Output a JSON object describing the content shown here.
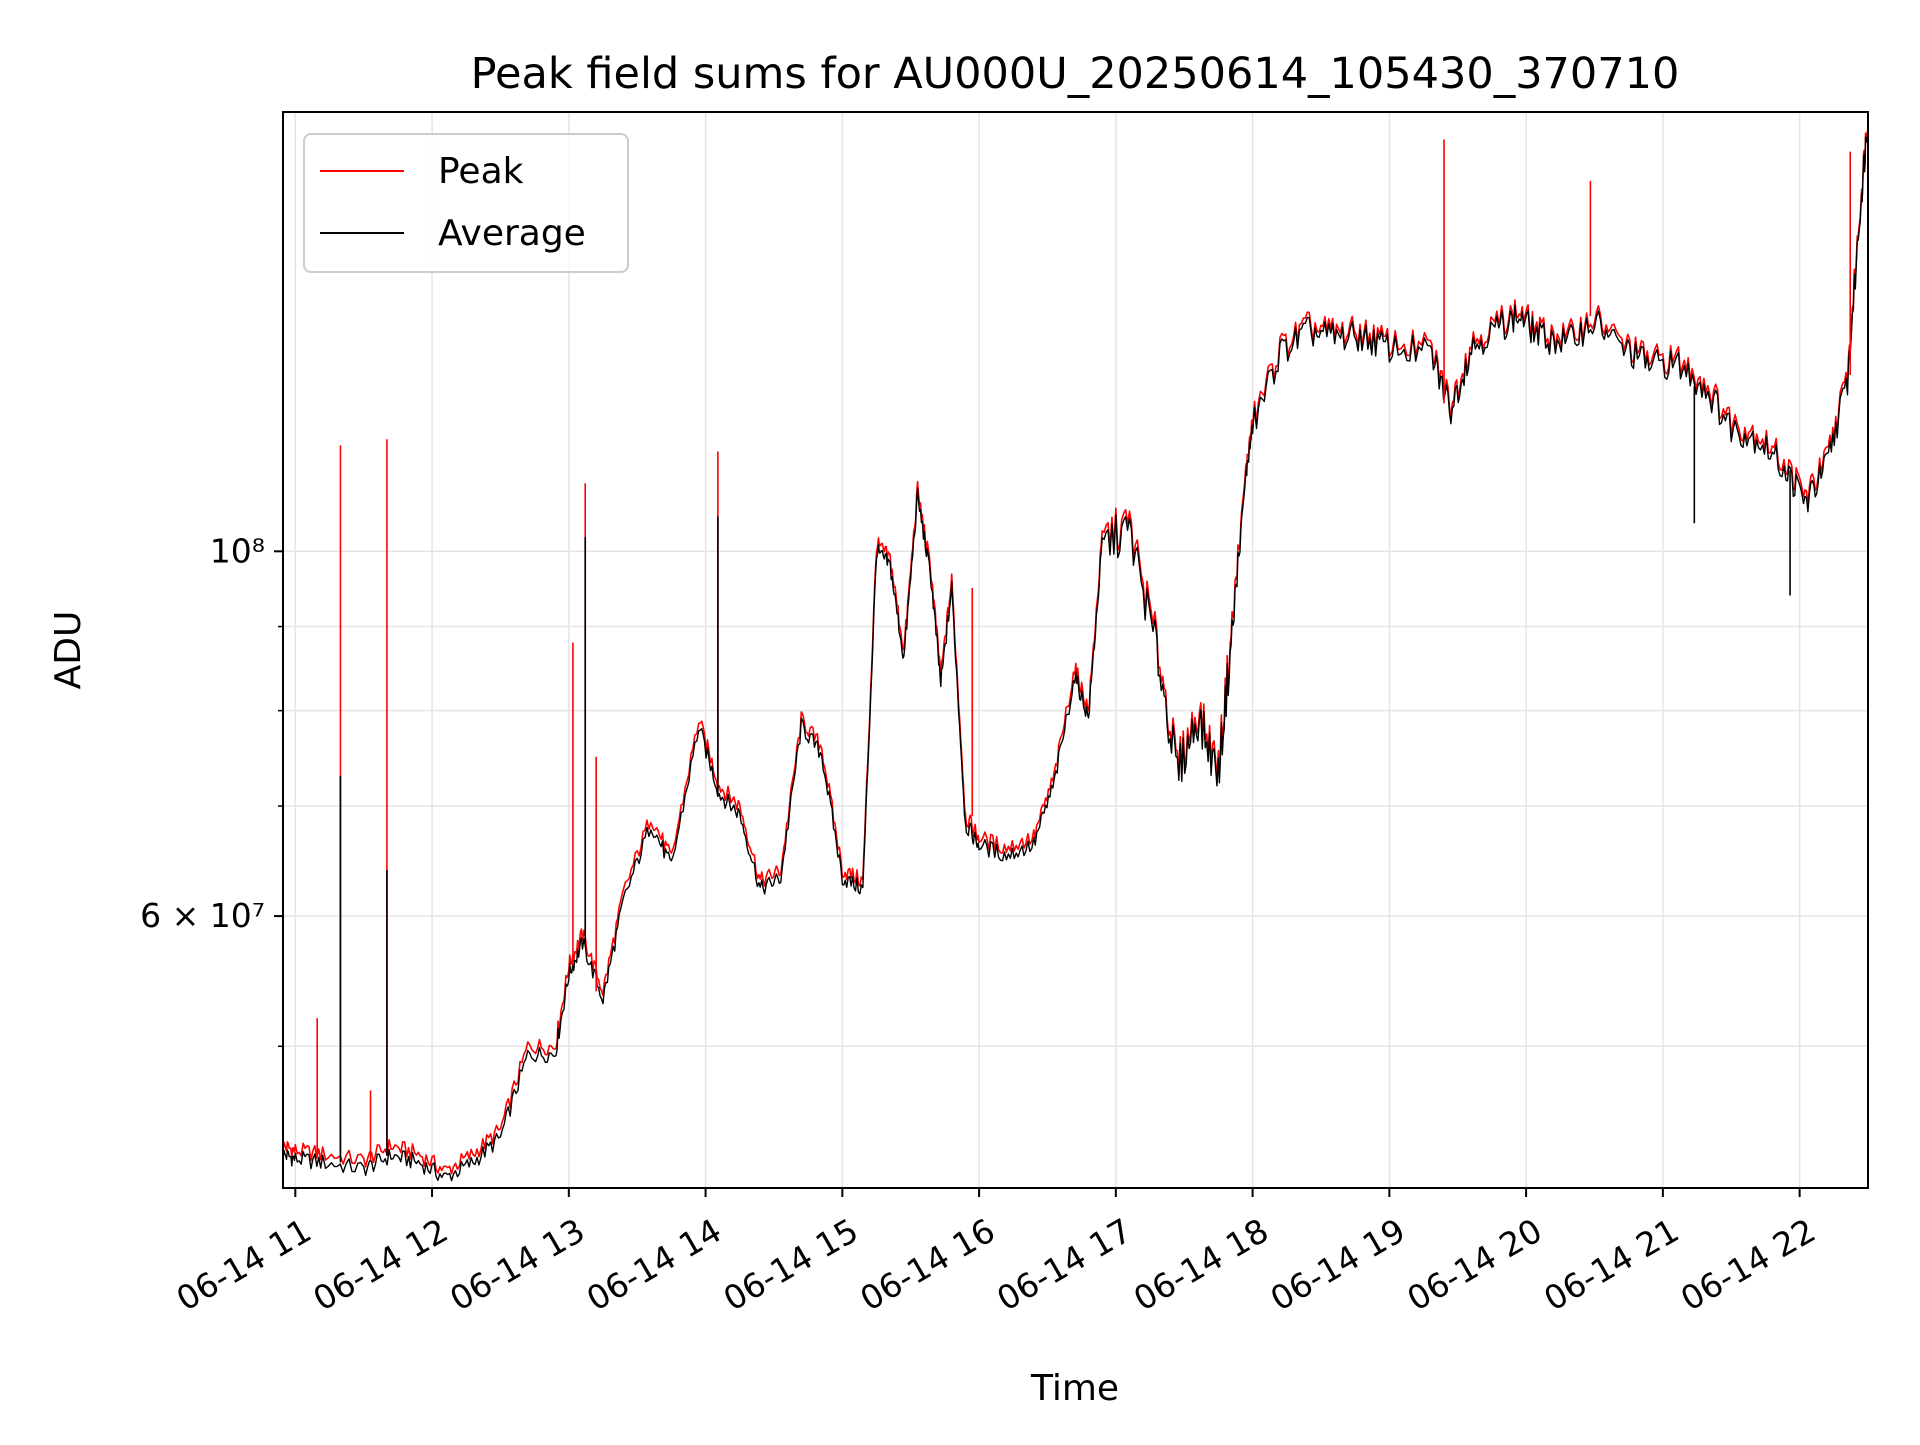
{
  "chart_data": {
    "type": "line",
    "title": "Peak field sums for AU000U_20250614_105430_370710",
    "xlabel": "Time",
    "ylabel": "ADU",
    "yscale": "log",
    "grid": true,
    "legend_position": "top-left",
    "x_ticks": [
      "06-14 11",
      "06-14 12",
      "06-14 13",
      "06-14 14",
      "06-14 15",
      "06-14 16",
      "06-14 17",
      "06-14 18",
      "06-14 19",
      "06-14 20",
      "06-14 21",
      "06-14 22"
    ],
    "x_tick_values_hours": [
      11,
      12,
      13,
      14,
      15,
      16,
      17,
      18,
      19,
      20,
      21,
      22
    ],
    "xlim_hours": [
      10.91,
      22.5
    ],
    "ylim": [
      41000000,
      185000000
    ],
    "y_major_ticks": [
      {
        "value": 60000000,
        "label": "6 × 10⁷"
      },
      {
        "value": 100000000,
        "label": "10⁸"
      }
    ],
    "y_minor_ticks": [
      50000000,
      70000000,
      80000000,
      90000000
    ],
    "series": [
      {
        "name": "Peak",
        "color": "#ff0000",
        "points": [
          [
            10.91,
            43500000
          ],
          [
            11.0,
            43200000
          ],
          [
            11.2,
            43000000
          ],
          [
            11.5,
            42600000
          ],
          [
            11.7,
            43500000
          ],
          [
            11.9,
            43000000
          ],
          [
            12.1,
            42000000
          ],
          [
            12.3,
            43000000
          ],
          [
            12.5,
            44500000
          ],
          [
            12.7,
            50000000
          ],
          [
            12.9,
            50000000
          ],
          [
            13.0,
            56000000
          ],
          [
            13.1,
            58500000
          ],
          [
            13.25,
            54000000
          ],
          [
            13.4,
            62000000
          ],
          [
            13.6,
            69000000
          ],
          [
            13.75,
            65000000
          ],
          [
            13.95,
            79000000
          ],
          [
            14.1,
            72000000
          ],
          [
            14.25,
            70000000
          ],
          [
            14.4,
            63000000
          ],
          [
            14.55,
            64000000
          ],
          [
            14.7,
            79000000
          ],
          [
            14.85,
            76000000
          ],
          [
            15.0,
            64000000
          ],
          [
            15.15,
            63000000
          ],
          [
            15.25,
            101000000
          ],
          [
            15.35,
            99000000
          ],
          [
            15.45,
            87000000
          ],
          [
            15.55,
            109000000
          ],
          [
            15.65,
            97000000
          ],
          [
            15.72,
            84000000
          ],
          [
            15.8,
            96000000
          ],
          [
            15.9,
            69000000
          ],
          [
            16.0,
            67000000
          ],
          [
            16.2,
            66000000
          ],
          [
            16.4,
            67000000
          ],
          [
            16.55,
            73000000
          ],
          [
            16.7,
            85000000
          ],
          [
            16.8,
            80000000
          ],
          [
            16.9,
            102000000
          ],
          [
            17.1,
            104000000
          ],
          [
            17.3,
            88000000
          ],
          [
            17.45,
            74000000
          ],
          [
            17.6,
            80000000
          ],
          [
            17.75,
            74000000
          ],
          [
            17.85,
            90000000
          ],
          [
            17.95,
            112000000
          ],
          [
            18.0,
            120000000
          ],
          [
            18.2,
            133000000
          ],
          [
            18.4,
            137000000
          ],
          [
            18.6,
            136000000
          ],
          [
            18.8,
            136000000
          ],
          [
            19.0,
            134000000
          ],
          [
            19.3,
            133000000
          ],
          [
            19.45,
            123000000
          ],
          [
            19.6,
            134000000
          ],
          [
            19.8,
            138000000
          ],
          [
            19.95,
            140000000
          ],
          [
            20.1,
            136000000
          ],
          [
            20.3,
            135000000
          ],
          [
            20.5,
            139000000
          ],
          [
            20.7,
            134000000
          ],
          [
            20.9,
            131000000
          ],
          [
            21.1,
            131000000
          ],
          [
            21.3,
            127000000
          ],
          [
            21.5,
            120000000
          ],
          [
            21.7,
            118000000
          ],
          [
            21.9,
            113000000
          ],
          [
            22.05,
            108000000
          ],
          [
            22.2,
            114000000
          ],
          [
            22.35,
            128000000
          ],
          [
            22.45,
            165000000
          ],
          [
            22.5,
            185000000
          ]
        ]
      },
      {
        "name": "Average",
        "color": "#000000",
        "points": [
          [
            10.91,
            43000000
          ],
          [
            11.0,
            42700000
          ],
          [
            11.2,
            42500000
          ],
          [
            11.5,
            42100000
          ],
          [
            11.7,
            42900000
          ],
          [
            11.9,
            42500000
          ],
          [
            12.1,
            41600000
          ],
          [
            12.3,
            42500000
          ],
          [
            12.5,
            44000000
          ],
          [
            12.7,
            49400000
          ],
          [
            12.9,
            49500000
          ],
          [
            13.0,
            55300000
          ],
          [
            13.1,
            57800000
          ],
          [
            13.25,
            53400000
          ],
          [
            13.4,
            61300000
          ],
          [
            13.6,
            68300000
          ],
          [
            13.75,
            64300000
          ],
          [
            13.95,
            78200000
          ],
          [
            14.1,
            71200000
          ],
          [
            14.25,
            69200000
          ],
          [
            14.4,
            62300000
          ],
          [
            14.55,
            63300000
          ],
          [
            14.7,
            78300000
          ],
          [
            14.85,
            75200000
          ],
          [
            15.0,
            63300000
          ],
          [
            15.15,
            62300000
          ],
          [
            15.25,
            100000000
          ],
          [
            15.35,
            98000000
          ],
          [
            15.45,
            86000000
          ],
          [
            15.55,
            108000000
          ],
          [
            15.65,
            96000000
          ],
          [
            15.72,
            83000000
          ],
          [
            15.8,
            95000000
          ],
          [
            15.9,
            68200000
          ],
          [
            16.0,
            66300000
          ],
          [
            16.2,
            65300000
          ],
          [
            16.4,
            66300000
          ],
          [
            16.55,
            72300000
          ],
          [
            16.7,
            84000000
          ],
          [
            16.8,
            79200000
          ],
          [
            16.9,
            101000000
          ],
          [
            17.1,
            103000000
          ],
          [
            17.3,
            87000000
          ],
          [
            17.45,
            73300000
          ],
          [
            17.6,
            79200000
          ],
          [
            17.75,
            73200000
          ],
          [
            17.85,
            89000000
          ],
          [
            17.95,
            111000000
          ],
          [
            18.0,
            119000000
          ],
          [
            18.2,
            132000000
          ],
          [
            18.4,
            136000000
          ],
          [
            18.6,
            135000000
          ],
          [
            18.8,
            135000000
          ],
          [
            19.0,
            133000000
          ],
          [
            19.3,
            132000000
          ],
          [
            19.45,
            122000000
          ],
          [
            19.6,
            133000000
          ],
          [
            19.8,
            137000000
          ],
          [
            19.95,
            139000000
          ],
          [
            20.1,
            135000000
          ],
          [
            20.3,
            134000000
          ],
          [
            20.5,
            138000000
          ],
          [
            20.7,
            133000000
          ],
          [
            20.9,
            130000000
          ],
          [
            21.1,
            130000000
          ],
          [
            21.3,
            126000000
          ],
          [
            21.5,
            119000000
          ],
          [
            21.7,
            117000000
          ],
          [
            21.9,
            112000000
          ],
          [
            22.05,
            107000000
          ],
          [
            22.2,
            113000000
          ],
          [
            22.35,
            127000000
          ],
          [
            22.45,
            164000000
          ],
          [
            22.5,
            184000000
          ]
        ]
      }
    ],
    "spikes": [
      {
        "series": "Peak",
        "x": 11.16,
        "y": 52000000
      },
      {
        "series": "Peak",
        "x": 11.33,
        "y": 116000000
      },
      {
        "series": "Peak",
        "x": 11.55,
        "y": 47000000
      },
      {
        "series": "Peak",
        "x": 11.67,
        "y": 117000000
      },
      {
        "series": "Peak",
        "x": 13.03,
        "y": 88000000
      },
      {
        "series": "Peak",
        "x": 13.12,
        "y": 110000000
      },
      {
        "series": "Peak",
        "x": 13.2,
        "y": 75000000
      },
      {
        "series": "Peak",
        "x": 14.09,
        "y": 115000000
      },
      {
        "series": "Peak",
        "x": 15.95,
        "y": 95000000
      },
      {
        "series": "Peak",
        "x": 19.4,
        "y": 178000000
      },
      {
        "series": "Peak",
        "x": 20.47,
        "y": 168000000
      },
      {
        "series": "Peak",
        "x": 22.37,
        "y": 175000000
      },
      {
        "series": "Average",
        "x": 11.33,
        "y": 73000000
      },
      {
        "series": "Average",
        "x": 11.67,
        "y": 64000000
      },
      {
        "series": "Average",
        "x": 13.12,
        "y": 102000000
      },
      {
        "series": "Average",
        "x": 14.09,
        "y": 105000000
      },
      {
        "series": "Average",
        "x": 21.23,
        "y": 104000000
      },
      {
        "series": "Average",
        "x": 21.93,
        "y": 94000000
      }
    ]
  }
}
